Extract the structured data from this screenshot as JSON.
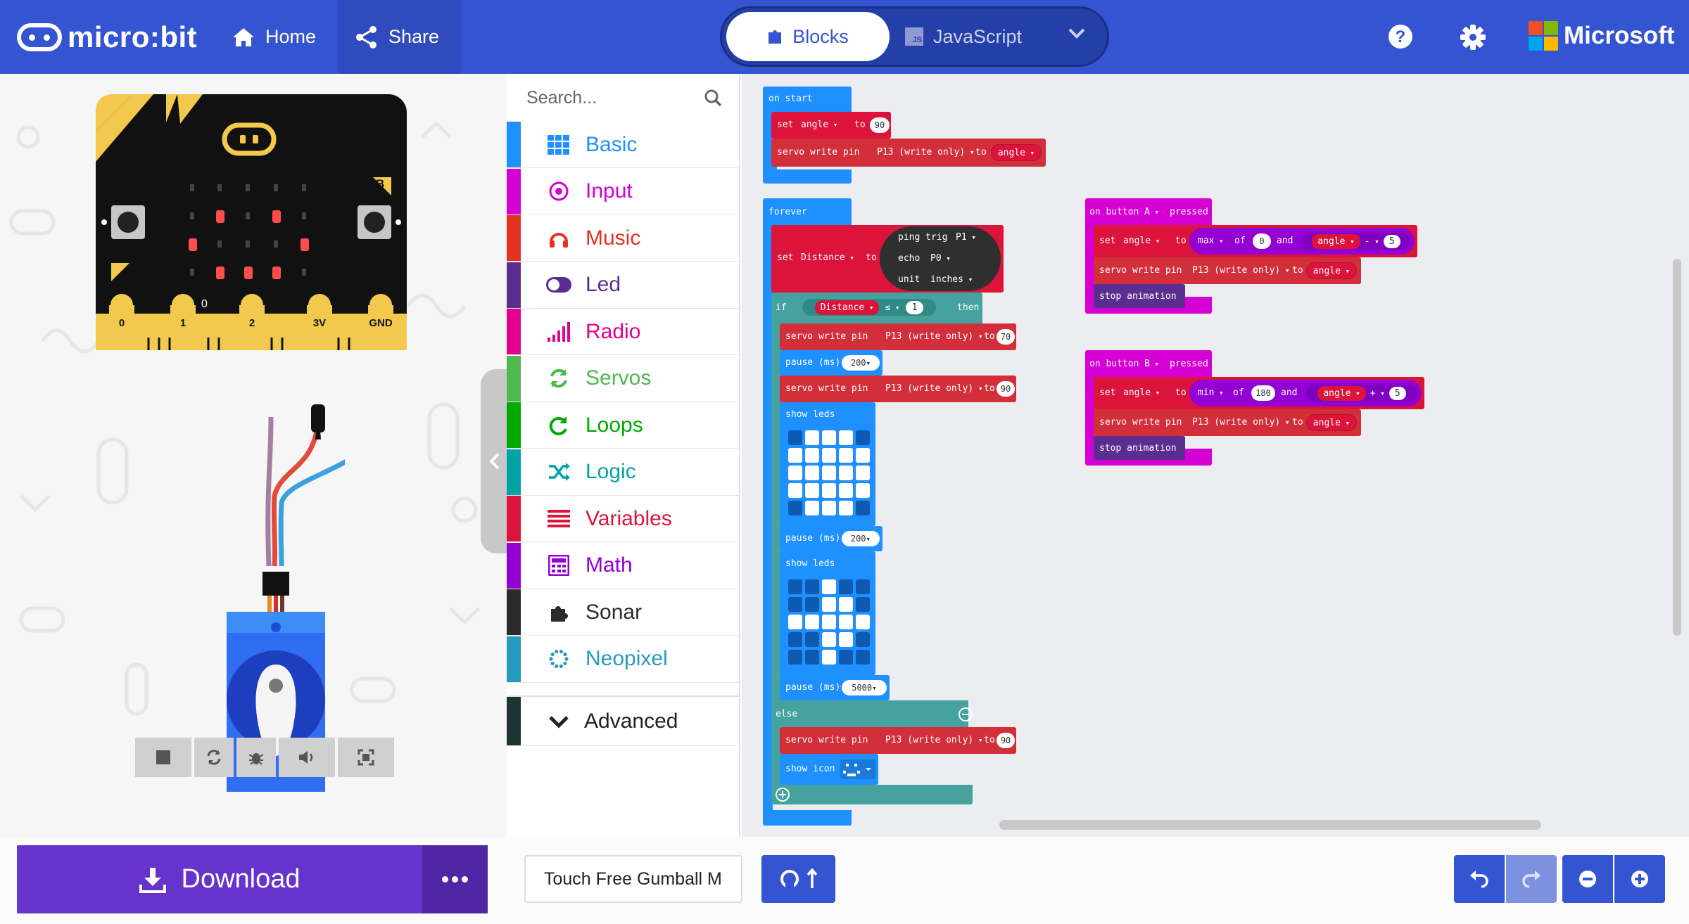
{
  "header": {
    "logo_text": "micro:bit",
    "home_label": "Home",
    "share_label": "Share",
    "blocks_label": "Blocks",
    "javascript_label": "JavaScript",
    "brand": "Microsoft",
    "colors": {
      "bar": "#3454d1",
      "toggle": "#2440a8"
    }
  },
  "simulator": {
    "pins": [
      "0",
      "1",
      "2",
      "3V",
      "GND"
    ],
    "button_a": "A",
    "button_b": "B",
    "zero_pin_label": "0",
    "toolbar_icons": [
      "stop-icon",
      "restart-icon",
      "debug-icon",
      "sound-icon",
      "fullscreen-icon"
    ]
  },
  "toolbox": {
    "search_placeholder": "Search...",
    "categories": [
      {
        "label": "Basic",
        "color": "#1e90ff"
      },
      {
        "label": "Input",
        "color": "#d400d4"
      },
      {
        "label": "Music",
        "color": "#e63022"
      },
      {
        "label": "Led",
        "color": "#5c2d91"
      },
      {
        "label": "Radio",
        "color": "#e3008c"
      },
      {
        "label": "Servos",
        "color": "#4eb94e"
      },
      {
        "label": "Loops",
        "color": "#00aa00"
      },
      {
        "label": "Logic",
        "color": "#00a4a6"
      },
      {
        "label": "Variables",
        "color": "#dc143c"
      },
      {
        "label": "Math",
        "color": "#9400d3"
      },
      {
        "label": "Sonar",
        "color": "#2b2b2b"
      },
      {
        "label": "Neopixel",
        "color": "#2699bf"
      }
    ],
    "advanced_label": "Advanced"
  },
  "workspace": {
    "on_start": {
      "hat": "on start",
      "set": "set",
      "var": "angle",
      "to": "to",
      "val": "90",
      "servo": "servo write pin",
      "pin": "P13 (write only)",
      "servo_to": "to",
      "servo_var": "angle"
    },
    "forever": {
      "hat": "forever",
      "set": "set",
      "var": "Distance",
      "to": "to",
      "ping": "ping trig",
      "trig": "P1",
      "echo": "echo",
      "echo_pin": "P0",
      "unit": "unit",
      "unit_val": "inches",
      "if": "if",
      "cond_var": "Distance",
      "cond_op": "≤",
      "cond_val": "1",
      "then": "then",
      "servo1": "servo write pin",
      "pin1": "P13 (write only)",
      "to1": "to",
      "val1": "70",
      "pause1": "pause (ms)",
      "pause1_val": "200",
      "servo2": "servo write pin",
      "pin2": "P13 (write only)",
      "to2": "to",
      "val2": "90",
      "show_leds1": "show leds",
      "pause2": "pause (ms)",
      "pause2_val": "200",
      "show_leds2": "show leds",
      "pause3": "pause (ms)",
      "pause3_val": "5000",
      "else": "else",
      "servo3": "servo write pin",
      "pin3": "P13 (write only)",
      "to3": "to",
      "val3": "90",
      "show_icon": "show icon"
    },
    "button_a": {
      "on": "on button",
      "btn": "A",
      "pressed": "pressed",
      "set": "set",
      "var": "angle",
      "to": "to",
      "fn": "max",
      "of": "of",
      "a": "0",
      "and": "and",
      "b": "angle",
      "op": "-",
      "c": "5",
      "servo": "servo write pin",
      "pin": "P13 (write only)",
      "servo_to": "to",
      "servo_var": "angle",
      "stop": "stop animation"
    },
    "button_b": {
      "on": "on button",
      "btn": "B",
      "pressed": "pressed",
      "set": "set",
      "var": "angle",
      "to": "to",
      "fn": "min",
      "of": "of",
      "a": "180",
      "and": "and",
      "b": "angle",
      "op": "+",
      "c": "5",
      "servo": "servo write pin",
      "pin": "P13 (write only)",
      "servo_to": "to",
      "servo_var": "angle",
      "stop": "stop animation"
    },
    "colors": {
      "events": "#d400d4",
      "basic": "#1e90ff",
      "servo": "#d32f3b",
      "vars": "#dc143c",
      "logic": "#45a29e",
      "math": "#9400d3",
      "sonar": "#2f2f2f",
      "led": "#5c2d91"
    }
  },
  "bottom": {
    "download_label": "Download",
    "project_name": "Touch Free Gumball Machine"
  }
}
